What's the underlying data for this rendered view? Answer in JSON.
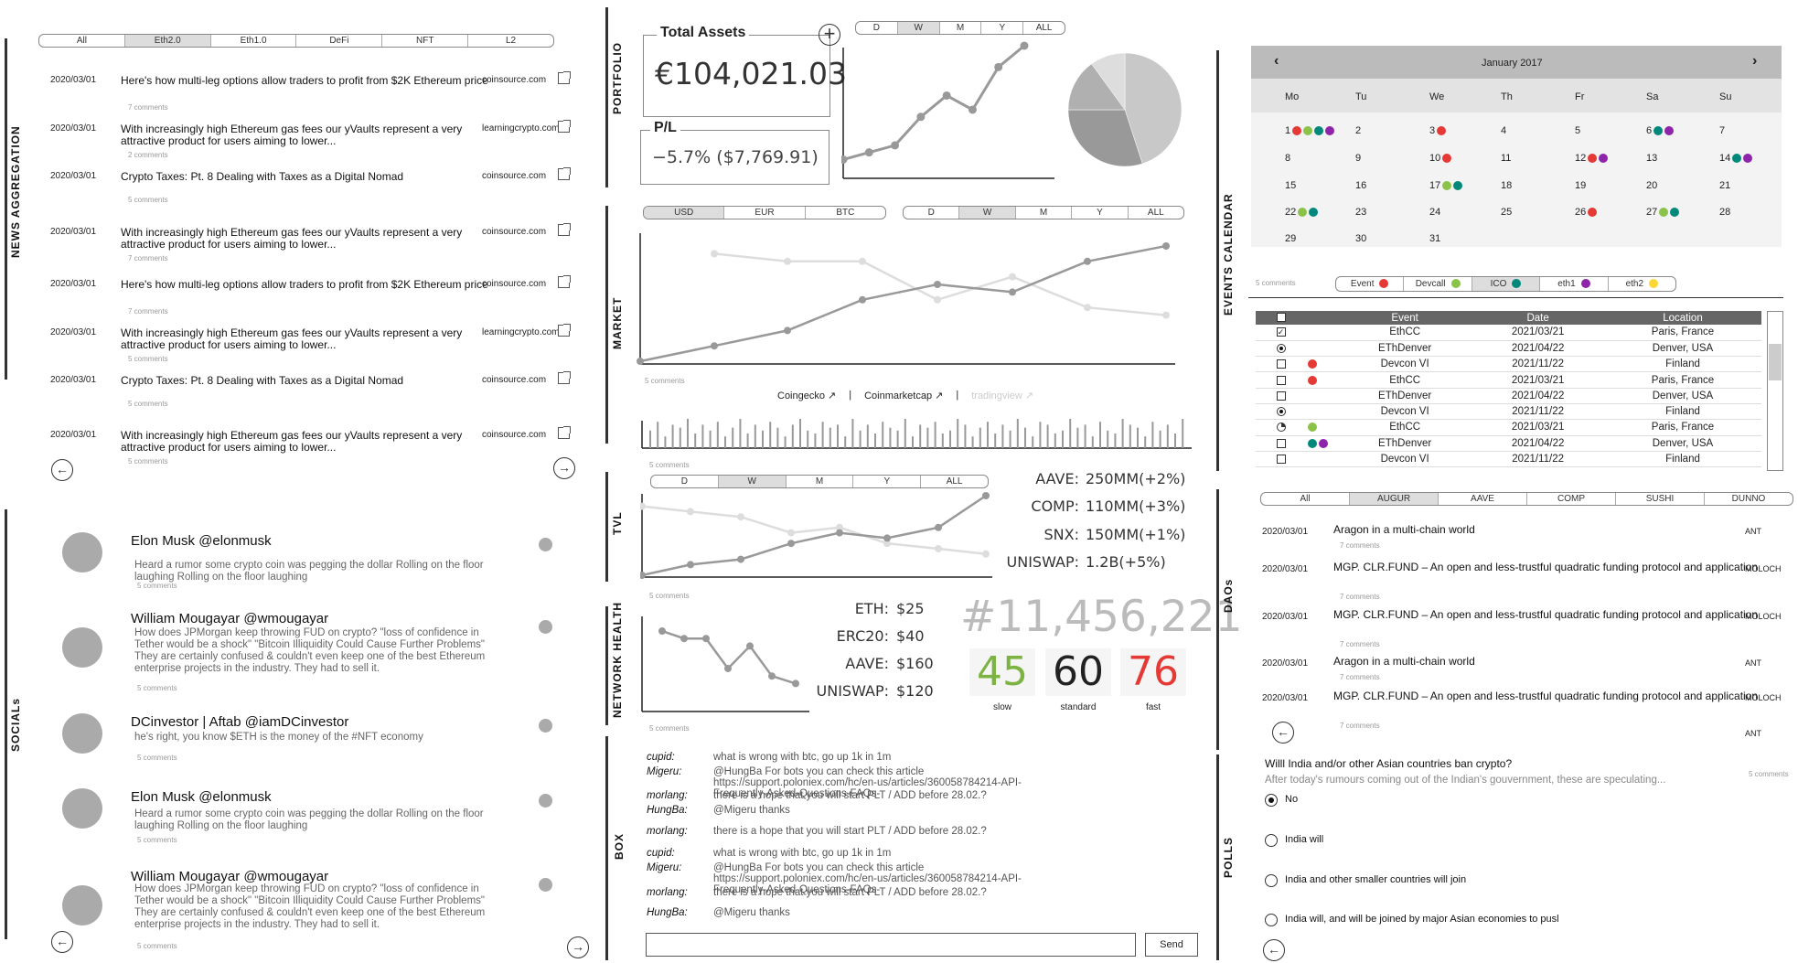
{
  "sections": {
    "news": "NEWS AGGREGATION",
    "socials": "SOCIALs",
    "portfolio": "PORTFOLIO",
    "market": "MARKET",
    "tvl": "TVL",
    "network": "NETWORK HEALTH",
    "box": "BOX",
    "events": "EVENTS CALENDAR",
    "daos": "DAOs",
    "polls": "POLLS"
  },
  "news": {
    "tabs": [
      "All",
      "Eth2.0",
      "Eth1.0",
      "DeFi",
      "NFT",
      "L2"
    ],
    "active_tab": 1,
    "items": [
      {
        "date": "2020/03/01",
        "title": "Here's how multi-leg options allow traders to profit from $2K Ethereum price",
        "source": "coinsource.com",
        "comments": "7 comments"
      },
      {
        "date": "2020/03/01",
        "title": "With increasingly high Ethereum gas fees our yVaults represent a very attractive product for users aiming to lower...",
        "source": "learningcrypto.com",
        "comments": "2 comments"
      },
      {
        "date": "2020/03/01",
        "title": "Crypto Taxes: Pt. 8 Dealing with Taxes as a Digital Nomad",
        "source": "coinsource.com",
        "comments": "5 comments"
      },
      {
        "date": "2020/03/01",
        "title": "With increasingly high Ethereum gas fees our yVaults represent a very attractive product for users aiming to lower...",
        "source": "coinsource.com",
        "comments": "7 comments"
      },
      {
        "date": "2020/03/01",
        "title": "Here's how multi-leg options allow traders to profit from $2K Ethereum price",
        "source": "coinsource.com",
        "comments": "7 comments"
      },
      {
        "date": "2020/03/01",
        "title": "With increasingly high Ethereum gas fees our yVaults represent a very attractive product for users aiming to lower...",
        "source": "learningcrypto.com",
        "comments": "5 comments"
      },
      {
        "date": "2020/03/01",
        "title": "Crypto Taxes: Pt. 8 Dealing with Taxes as a Digital Nomad",
        "source": "coinsource.com",
        "comments": "5 comments"
      },
      {
        "date": "2020/03/01",
        "title": "With increasingly high Ethereum gas fees our yVaults represent a very attractive product for users aiming to lower...",
        "source": "coinsource.com",
        "comments": "5 comments"
      }
    ]
  },
  "socials": [
    {
      "name": "Elon Musk @elonmusk",
      "text": "Heard a rumor some crypto coin was pegging the dollar  Rolling on the floor laughing Rolling on the floor laughing",
      "comments": "5 comments"
    },
    {
      "name": "William Mougayar @wmougayar",
      "text": "How does JPMorgan keep throwing FUD on crypto? \"loss of confidence in Tether would be a shock\" \"Bitcoin Illiquidity Could Cause Further Problems\"  They are certainly confused & couldn't even keep one of the best Ethereum enterprise projects in the industry. They had to sell it.",
      "comments": "5 comments"
    },
    {
      "name": "DCinvestor | Aftab @iamDCinvestor",
      "text": "he's right, you know  $ETH is the money of the #NFT economy",
      "comments": "5 comments"
    },
    {
      "name": "Elon Musk @elonmusk",
      "text": "Heard a rumor some crypto coin was pegging the dollar  Rolling on the floor laughing Rolling on the floor laughing",
      "comments": "5 comments"
    },
    {
      "name": "William Mougayar @wmougayar",
      "text": "How does JPMorgan keep throwing FUD on crypto? \"loss of confidence in Tether would be a shock\" \"Bitcoin Illiquidity Could Cause Further Problems\"  They are certainly confused & couldn't even keep one of the best Ethereum enterprise projects in the industry. They had to sell it.",
      "comments": "5 comments"
    }
  ],
  "portfolio": {
    "total_label": "Total Assets",
    "total_value": "€104,021.03",
    "pl_label": "P/L",
    "pl_value": "−5.7% ($7,769.91)",
    "add": "+",
    "tabs": [
      "D",
      "W",
      "M",
      "Y",
      "ALL"
    ],
    "active_tab": 1,
    "line_values": [
      2,
      3,
      4,
      8,
      11,
      9,
      15,
      18
    ],
    "pie": [
      {
        "value": 45,
        "color": "#c8c8c8"
      },
      {
        "value": 30,
        "color": "#999999"
      },
      {
        "value": 15,
        "color": "#b0b0b0"
      },
      {
        "value": 10,
        "color": "#dddddd"
      }
    ]
  },
  "market": {
    "cur_tabs": [
      "USD",
      "EUR",
      "BTC"
    ],
    "cur_active": 0,
    "time_tabs": [
      "D",
      "W",
      "M",
      "Y",
      "ALL"
    ],
    "time_active": 1,
    "series_dark": [
      0,
      2,
      4,
      8,
      10,
      9,
      13,
      15
    ],
    "series_light": [
      null,
      14,
      13,
      13,
      8,
      11,
      7,
      6
    ],
    "comments": "5 comments",
    "links": [
      "Coingecko ↗",
      "|",
      "Coinmarketcap ↗",
      "|",
      "tradingview ↗"
    ],
    "volume": [
      6,
      9,
      4,
      8,
      7,
      10,
      5,
      8,
      6,
      9,
      4,
      7,
      10,
      5,
      8,
      6,
      9,
      7,
      4,
      8,
      10,
      6,
      5,
      9,
      7,
      8,
      4,
      10,
      6,
      8,
      5,
      9,
      7,
      6,
      10,
      4,
      8,
      7,
      9,
      5,
      6,
      10,
      8,
      4,
      7,
      9,
      5,
      8,
      6,
      10,
      7,
      4,
      9,
      8,
      5,
      6,
      10,
      7,
      8,
      4,
      9,
      6,
      5,
      10,
      8,
      7,
      4,
      9,
      6,
      8,
      5,
      10
    ],
    "comments2": "5 comments"
  },
  "tvl": {
    "tabs": [
      "D",
      "W",
      "M",
      "Y",
      "ALL"
    ],
    "active_tab": 1,
    "series_dark": [
      0,
      2,
      3,
      6,
      8,
      7,
      9,
      15
    ],
    "series_light": [
      13,
      12,
      11,
      8,
      9,
      6,
      5,
      4
    ],
    "stats": [
      {
        "label": "AAVE:",
        "value": "250MM(+2%)"
      },
      {
        "label": "COMP:",
        "value": "110MM(+3%)"
      },
      {
        "label": "SNX:",
        "value": "150MM(+1%)"
      },
      {
        "label": "UNISWAP:",
        "value": "1.2B(+5%)"
      }
    ],
    "comments": "5 comments"
  },
  "network": {
    "series": [
      10,
      9,
      9,
      5,
      8,
      4,
      3
    ],
    "fees": [
      {
        "label": "ETH:",
        "value": "$25"
      },
      {
        "label": "ERC20:",
        "value": "$40"
      },
      {
        "label": "AAVE:",
        "value": "$160"
      },
      {
        "label": "UNISWAP:",
        "value": "$120"
      }
    ],
    "block": "#11,456,221",
    "gas": [
      {
        "value": "45",
        "label": "slow",
        "color": "#7cb342"
      },
      {
        "value": "60",
        "label": "standard",
        "color": "#222222"
      },
      {
        "value": "76",
        "label": "fast",
        "color": "#e53935"
      }
    ],
    "comments": "5 comments"
  },
  "box": {
    "messages": [
      {
        "user": "cupid:",
        "msg": "what is wrong with btc, go up 1k in 1m"
      },
      {
        "user": "Migeru:",
        "msg": "@HungBa For bots you can check this article https://support.poloniex.com/hc/en-us/articles/360058784214-API-Frequently-Asked-Questions-FAQs-"
      },
      {
        "user": "morlang:",
        "msg": "there is a hope that you will start PLT / ADD before 28.02.?"
      },
      {
        "user": "HungBa:",
        "msg": "@Migeru thanks"
      },
      {
        "user": "morlang:",
        "msg": "there is a hope that you will start PLT / ADD before 28.02.?"
      },
      {
        "user": "cupid:",
        "msg": "what is wrong with btc, go up 1k in 1m"
      },
      {
        "user": "Migeru:",
        "msg": "@HungBa For bots you can check this article https://support.poloniex.com/hc/en-us/articles/360058784214-API-Frequently-Asked-Questions-FAQs-"
      },
      {
        "user": "morlang:",
        "msg": "there is a hope that you will start PLT / ADD before 28.02.?"
      },
      {
        "user": "HungBa:",
        "msg": "@Migeru thanks"
      }
    ],
    "send": "Send"
  },
  "calendar": {
    "month": "January 2017",
    "prev": "‹",
    "next": "›",
    "days": [
      "Mo",
      "Tu",
      "We",
      "Th",
      "Fr",
      "Sa",
      "Su"
    ],
    "weeks": [
      [
        "1",
        "2",
        "3",
        "4",
        "5",
        "6",
        "7"
      ],
      [
        "8",
        "9",
        "10",
        "11",
        "12",
        "13",
        "14"
      ],
      [
        "15",
        "16",
        "17",
        "18",
        "19",
        "20",
        "21"
      ],
      [
        "22",
        "23",
        "24",
        "25",
        "26",
        "27",
        "28"
      ],
      [
        "29",
        "30",
        "31",
        "",
        "",
        "",
        ""
      ]
    ],
    "comments": "5 comments",
    "legend": [
      {
        "label": "Event",
        "color": "#e53935"
      },
      {
        "label": "Devcall",
        "color": "#8bc34a"
      },
      {
        "label": "ICO",
        "color": "#00897b"
      },
      {
        "label": "eth1",
        "color": "#8e24aa"
      },
      {
        "label": "eth2",
        "color": "#fdd835"
      }
    ],
    "legend_active": 2
  },
  "events": {
    "headers": [
      "Event",
      "Date",
      "Location"
    ],
    "rows": [
      {
        "mark": "check",
        "dots": [],
        "event": "EthCC",
        "date": "2021/03/21",
        "loc": "Paris, France"
      },
      {
        "mark": "radio",
        "dots": [],
        "event": "EThDenver",
        "date": "2021/04/22",
        "loc": "Denver, USA"
      },
      {
        "mark": "box",
        "dots": [
          "#e53935"
        ],
        "event": "Devcon VI",
        "date": "2021/11/22",
        "loc": "Finland"
      },
      {
        "mark": "box",
        "dots": [
          "#e53935"
        ],
        "event": "EthCC",
        "date": "2021/03/21",
        "loc": "Paris, France"
      },
      {
        "mark": "box",
        "dots": [],
        "event": "EThDenver",
        "date": "2021/04/22",
        "loc": "Denver, USA"
      },
      {
        "mark": "radio",
        "dots": [],
        "event": "Devcon VI",
        "date": "2021/11/22",
        "loc": "Finland"
      },
      {
        "mark": "pie",
        "dots": [
          "#8bc34a"
        ],
        "event": "EthCC",
        "date": "2021/03/21",
        "loc": "Paris, France"
      },
      {
        "mark": "box",
        "dots": [
          "#00897b",
          "#8e24aa"
        ],
        "event": "EThDenver",
        "date": "2021/04/22",
        "loc": "Denver, USA"
      },
      {
        "mark": "box",
        "dots": [],
        "event": "Devcon VI",
        "date": "2021/11/22",
        "loc": "Finland"
      }
    ]
  },
  "daos": {
    "tabs": [
      "All",
      "AUGUR",
      "AAVE",
      "COMP",
      "SUSHI",
      "DUNNO"
    ],
    "active_tab": 1,
    "items": [
      {
        "date": "2020/03/01",
        "title": "Aragon in a multi-chain world",
        "tag": "ANT",
        "comments": "7 comments"
      },
      {
        "date": "2020/03/01",
        "title": "MGP. CLR.FUND – An open and less-trustful quadratic funding protocol and application",
        "tag": "MOLOCH",
        "comments": "7 comments"
      },
      {
        "date": "2020/03/01",
        "title": "MGP. CLR.FUND – An open and less-trustful quadratic funding protocol and application",
        "tag": "MOLOCH",
        "comments": "7 comments"
      },
      {
        "date": "2020/03/01",
        "title": "Aragon in a multi-chain world",
        "tag": "ANT",
        "comments": "7 comments"
      },
      {
        "date": "2020/03/01",
        "title": "MGP. CLR.FUND – An open and less-trustful quadratic funding protocol and application",
        "tag": "MOLOCH",
        "comments": "7 comments"
      }
    ],
    "last_tag": "ANT"
  },
  "poll": {
    "question": "Willl India and/or other Asian countries ban crypto?",
    "desc": "After today's rumours coming out of the Indian's gouvernment, these are speculating...",
    "comments": "5 comments",
    "options": [
      "No",
      "India will",
      "India and other smaller countries will join",
      "India will, and will be joined by major Asian economies to pusl"
    ],
    "selected": 0
  },
  "nav": {
    "back": "←",
    "forward": "→"
  }
}
